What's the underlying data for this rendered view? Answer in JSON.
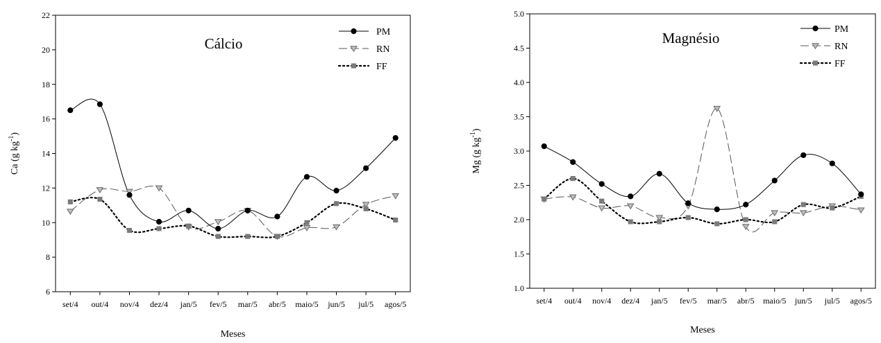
{
  "chart_data": [
    {
      "type": "line",
      "title": "Cálcio",
      "xlabel": "Meses",
      "ylabel": "Ca (g kg",
      "ylabel_sup": "-1",
      "ylabel_close": ")",
      "ylim": [
        6,
        22
      ],
      "yticks": [
        "6",
        "8",
        "10",
        "12",
        "14",
        "16",
        "18",
        "20",
        "22"
      ],
      "categories": [
        "set/4",
        "out/4",
        "nov/4",
        "dez/4",
        "jan/5",
        "fev/5",
        "mar/5",
        "abr/5",
        "maio/5",
        "jun/5",
        "jul/5",
        "agos/5"
      ],
      "grid": false,
      "legend_position": "top-right",
      "series": [
        {
          "name": "PM",
          "marker": "circle",
          "line": "solid",
          "color": "#000000",
          "values": [
            16.5,
            16.85,
            11.6,
            10.05,
            10.7,
            9.65,
            10.7,
            10.35,
            12.65,
            11.85,
            13.15,
            14.9
          ]
        },
        {
          "name": "RN",
          "marker": "triangle-down",
          "line": "dashed",
          "color": "#555555",
          "values": [
            10.65,
            11.9,
            11.8,
            12.0,
            9.75,
            10.05,
            10.7,
            9.2,
            9.7,
            9.75,
            11.05,
            11.55
          ]
        },
        {
          "name": "FF",
          "marker": "square",
          "line": "dotted",
          "color": "#000000",
          "values": [
            11.2,
            11.35,
            9.55,
            9.65,
            9.8,
            9.2,
            9.2,
            9.2,
            10.0,
            11.1,
            10.8,
            10.15
          ]
        }
      ]
    },
    {
      "type": "line",
      "title": "Magnésio",
      "xlabel": "Meses",
      "ylabel": "Mg (g kg",
      "ylabel_sup": "-1",
      "ylabel_close": ")",
      "ylim": [
        1.0,
        5.0
      ],
      "yticks": [
        "1.0",
        "1.5",
        "2.0",
        "2.5",
        "3.0",
        "3.5",
        "4.0",
        "4.5",
        "5.0"
      ],
      "categories": [
        "set/4",
        "out/4",
        "nov/4",
        "dez/4",
        "jan/5",
        "fev/5",
        "mar/5",
        "abr/5",
        "maio/5",
        "jun/5",
        "jul/5",
        "agos/5"
      ],
      "grid": false,
      "legend_position": "top-right",
      "series": [
        {
          "name": "PM",
          "marker": "circle",
          "line": "solid",
          "color": "#000000",
          "values": [
            3.07,
            2.84,
            2.52,
            2.34,
            2.67,
            2.24,
            2.15,
            2.22,
            2.57,
            2.94,
            2.82,
            2.37
          ]
        },
        {
          "name": "RN",
          "marker": "triangle-down",
          "line": "dashed",
          "color": "#555555",
          "values": [
            2.3,
            2.33,
            2.17,
            2.2,
            2.03,
            2.2,
            3.62,
            1.9,
            2.1,
            2.1,
            2.2,
            2.14
          ]
        },
        {
          "name": "FF",
          "marker": "square",
          "line": "dotted",
          "color": "#000000",
          "values": [
            2.3,
            2.6,
            2.27,
            1.97,
            1.97,
            2.03,
            1.94,
            2.0,
            1.97,
            2.22,
            2.17,
            2.34
          ]
        }
      ]
    }
  ]
}
